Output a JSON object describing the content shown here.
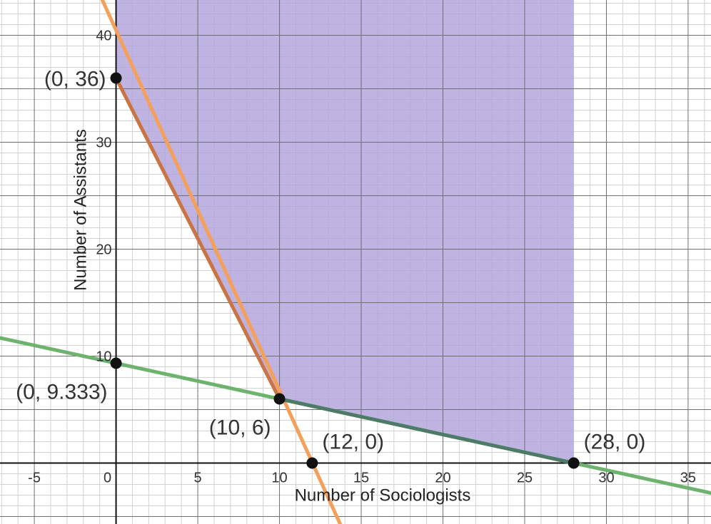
{
  "chart_data": {
    "type": "line",
    "title": "",
    "xlabel": "Number of Sociologists",
    "ylabel": "Number of Assistants",
    "xlim": [
      -7.1,
      36.4
    ],
    "ylim": [
      -5.7,
      43.3
    ],
    "major_grid_step": 5,
    "minor_grid_step": 1,
    "grid": true,
    "x_tick_labels": [
      "-5",
      "0",
      "5",
      "10",
      "15",
      "20",
      "25",
      "30",
      "35"
    ],
    "y_tick_labels": [
      "10",
      "20",
      "30",
      "40"
    ],
    "lines": [
      {
        "color": "#f5a05a",
        "from": [
          -1.7,
          46.2
        ],
        "to": [
          13.8,
          -6.0
        ]
      },
      {
        "color": "#6db36d",
        "from": [
          -7.1,
          11.7
        ],
        "to": [
          36.4,
          -2.8
        ]
      }
    ],
    "feasible_region": {
      "color": "#b3a6dc",
      "vertices": [
        [
          0,
          43.3
        ],
        [
          28,
          43.3
        ],
        [
          28,
          0
        ],
        [
          10,
          6
        ],
        [
          0,
          36
        ]
      ]
    },
    "boundary_segments": [
      {
        "color": "#c97442",
        "from": [
          0,
          36
        ],
        "to": [
          10,
          6
        ]
      },
      {
        "color": "#4e7a68",
        "from": [
          10,
          6
        ],
        "to": [
          28,
          0
        ]
      }
    ],
    "points": [
      {
        "x": 0,
        "y": 36,
        "label": "(0, 36)",
        "anchor": "left"
      },
      {
        "x": 0,
        "y": 9.333,
        "label": "(0, 9.333)",
        "anchor": "below-left"
      },
      {
        "x": 10,
        "y": 6,
        "label": "(10, 6)",
        "anchor": "below-left"
      },
      {
        "x": 12,
        "y": 0,
        "label": "(12, 0)",
        "anchor": "above-right"
      },
      {
        "x": 28,
        "y": 0,
        "label": "(28, 0)",
        "anchor": "above-right"
      }
    ]
  }
}
